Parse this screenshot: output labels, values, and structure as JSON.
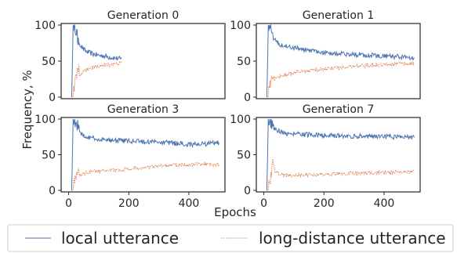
{
  "figure": {
    "ylabel": "Frequency, %",
    "xlabel": "Epochs"
  },
  "colors": {
    "local": "#4c72b0",
    "long_distance": "#dd8452",
    "axes": "#262626"
  },
  "legend": {
    "placement": "bottom",
    "items": [
      {
        "label": "local utterance",
        "style": "solid"
      },
      {
        "label": "long-distance utterance",
        "style": "dotted"
      }
    ]
  },
  "chart_data": [
    {
      "type": "line",
      "title": "Generation 0",
      "xlim": [
        -25,
        520
      ],
      "ylim": [
        0,
        100
      ],
      "yticks": [
        0,
        50,
        100
      ],
      "xticks": [],
      "series": [
        {
          "name": "local utterance",
          "x": [
            10,
            15,
            20,
            25,
            30,
            40,
            50,
            60,
            80,
            100,
            120,
            140,
            160,
            175
          ],
          "y": [
            0,
            100,
            100,
            95,
            80,
            72,
            66,
            63,
            60,
            58,
            57,
            55,
            54,
            53
          ]
        },
        {
          "name": "long-distance utterance",
          "x": [
            10,
            15,
            20,
            25,
            30,
            40,
            50,
            60,
            80,
            100,
            120,
            140,
            160,
            175
          ],
          "y": [
            0,
            0,
            10,
            20,
            28,
            33,
            36,
            38,
            41,
            43,
            44,
            45,
            46,
            47
          ]
        }
      ]
    },
    {
      "type": "line",
      "title": "Generation 1",
      "xlim": [
        -25,
        520
      ],
      "ylim": [
        0,
        100
      ],
      "yticks": [
        0,
        50,
        100
      ],
      "xticks": [],
      "series": [
        {
          "name": "local utterance",
          "x": [
            10,
            15,
            20,
            25,
            30,
            40,
            60,
            80,
            100,
            150,
            200,
            250,
            300,
            350,
            400,
            450,
            500
          ],
          "y": [
            0,
            100,
            100,
            95,
            85,
            78,
            72,
            70,
            68,
            65,
            62,
            60,
            59,
            58,
            57,
            56,
            55
          ]
        },
        {
          "name": "long-distance utterance",
          "x": [
            10,
            15,
            20,
            25,
            30,
            40,
            60,
            80,
            100,
            150,
            200,
            250,
            300,
            350,
            400,
            450,
            500
          ],
          "y": [
            0,
            0,
            10,
            18,
            22,
            26,
            30,
            32,
            34,
            37,
            39,
            41,
            43,
            44,
            45,
            46,
            47
          ]
        }
      ]
    },
    {
      "type": "line",
      "title": "Generation 3",
      "xlim": [
        -25,
        520
      ],
      "ylim": [
        0,
        100
      ],
      "yticks": [
        0,
        50,
        100
      ],
      "xticks": [
        0,
        200,
        400
      ],
      "series": [
        {
          "name": "local utterance",
          "x": [
            10,
            15,
            20,
            25,
            30,
            40,
            60,
            80,
            100,
            150,
            200,
            250,
            300,
            350,
            400,
            450,
            500
          ],
          "y": [
            0,
            100,
            100,
            95,
            88,
            80,
            75,
            73,
            72,
            70,
            69,
            68,
            68,
            66,
            64,
            65,
            67
          ]
        },
        {
          "name": "long-distance utterance",
          "x": [
            10,
            15,
            20,
            25,
            30,
            40,
            60,
            80,
            100,
            150,
            200,
            250,
            300,
            350,
            400,
            450,
            500
          ],
          "y": [
            0,
            0,
            5,
            12,
            18,
            22,
            25,
            26,
            27,
            28,
            30,
            32,
            34,
            35,
            36,
            37,
            36
          ]
        }
      ]
    },
    {
      "type": "line",
      "title": "Generation 7",
      "xlim": [
        -25,
        520
      ],
      "ylim": [
        0,
        100
      ],
      "yticks": [
        0,
        50,
        100
      ],
      "xticks": [
        0,
        200,
        400
      ],
      "series": [
        {
          "name": "local utterance",
          "x": [
            10,
            15,
            20,
            25,
            30,
            40,
            60,
            80,
            100,
            150,
            200,
            250,
            300,
            350,
            400,
            450,
            500
          ],
          "y": [
            0,
            100,
            100,
            95,
            90,
            85,
            82,
            80,
            79,
            78,
            77,
            77,
            76,
            76,
            75,
            75,
            74
          ]
        },
        {
          "name": "long-distance utterance",
          "x": [
            10,
            15,
            20,
            25,
            30,
            40,
            60,
            80,
            100,
            150,
            200,
            250,
            300,
            350,
            400,
            450,
            500
          ],
          "y": [
            0,
            0,
            5,
            15,
            30,
            25,
            22,
            21,
            21,
            22,
            22,
            23,
            24,
            24,
            25,
            26,
            26
          ]
        }
      ]
    }
  ]
}
